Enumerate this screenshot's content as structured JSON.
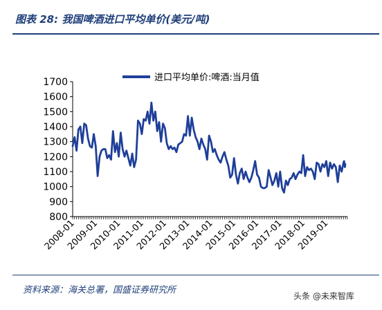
{
  "header": {
    "title": "图表 28: 我国啤酒进口平均单价(美元/吨)"
  },
  "footer": {
    "source": "资料来源：海关总署，国盛证券研究所",
    "watermark": "头条 @未来智库"
  },
  "colors": {
    "series": "#1f3f99",
    "frame": "#1f3f7a"
  },
  "chart_data": {
    "type": "line",
    "legend": {
      "position": "top-center"
    },
    "grid": false,
    "ylim": [
      800,
      1700
    ],
    "yticks": [
      800,
      900,
      1000,
      1100,
      1200,
      1300,
      1400,
      1500,
      1600,
      1700
    ],
    "xticks": [
      "2008-01",
      "2009-01",
      "2010-01",
      "2011-01",
      "2012-01",
      "2013-01",
      "2014-01",
      "2015-01",
      "2016-01",
      "2017-01",
      "2018-01",
      "2019-01"
    ],
    "xlim": [
      "2008-01",
      "2019-12"
    ],
    "series": [
      {
        "name": "进口平均单价:啤酒:当月值",
        "points": [
          [
            "2008-01",
            1270
          ],
          [
            "2008-02",
            1330
          ],
          [
            "2008-03",
            1240
          ],
          [
            "2008-04",
            1380
          ],
          [
            "2008-05",
            1400
          ],
          [
            "2008-06",
            1290
          ],
          [
            "2008-07",
            1420
          ],
          [
            "2008-08",
            1410
          ],
          [
            "2008-09",
            1320
          ],
          [
            "2008-10",
            1270
          ],
          [
            "2008-11",
            1260
          ],
          [
            "2008-12",
            1350
          ],
          [
            "2009-01",
            1270
          ],
          [
            "2009-02",
            1070
          ],
          [
            "2009-03",
            1200
          ],
          [
            "2009-04",
            1240
          ],
          [
            "2009-05",
            1250
          ],
          [
            "2009-06",
            1250
          ],
          [
            "2009-07",
            1190
          ],
          [
            "2009-08",
            1210
          ],
          [
            "2009-09",
            1180
          ],
          [
            "2009-10",
            1370
          ],
          [
            "2009-11",
            1230
          ],
          [
            "2009-12",
            1290
          ],
          [
            "2010-01",
            1200
          ],
          [
            "2010-02",
            1360
          ],
          [
            "2010-03",
            1250
          ],
          [
            "2010-04",
            1200
          ],
          [
            "2010-05",
            1240
          ],
          [
            "2010-06",
            1190
          ],
          [
            "2010-07",
            1140
          ],
          [
            "2010-08",
            1220
          ],
          [
            "2010-09",
            1130
          ],
          [
            "2010-10",
            1180
          ],
          [
            "2010-11",
            1440
          ],
          [
            "2010-12",
            1420
          ],
          [
            "2011-01",
            1350
          ],
          [
            "2011-02",
            1450
          ],
          [
            "2011-03",
            1440
          ],
          [
            "2011-04",
            1500
          ],
          [
            "2011-05",
            1420
          ],
          [
            "2011-06",
            1560
          ],
          [
            "2011-07",
            1440
          ],
          [
            "2011-08",
            1500
          ],
          [
            "2011-09",
            1370
          ],
          [
            "2011-10",
            1430
          ],
          [
            "2011-11",
            1300
          ],
          [
            "2011-12",
            1420
          ],
          [
            "2012-01",
            1390
          ],
          [
            "2012-02",
            1290
          ],
          [
            "2012-03",
            1250
          ],
          [
            "2012-04",
            1270
          ],
          [
            "2012-05",
            1250
          ],
          [
            "2012-06",
            1260
          ],
          [
            "2012-07",
            1230
          ],
          [
            "2012-08",
            1280
          ],
          [
            "2012-09",
            1290
          ],
          [
            "2012-10",
            1300
          ],
          [
            "2012-11",
            1350
          ],
          [
            "2012-12",
            1340
          ],
          [
            "2013-01",
            1470
          ],
          [
            "2013-02",
            1340
          ],
          [
            "2013-03",
            1460
          ],
          [
            "2013-04",
            1380
          ],
          [
            "2013-05",
            1330
          ],
          [
            "2013-06",
            1300
          ],
          [
            "2013-07",
            1250
          ],
          [
            "2013-08",
            1320
          ],
          [
            "2013-09",
            1280
          ],
          [
            "2013-10",
            1250
          ],
          [
            "2013-11",
            1180
          ],
          [
            "2013-12",
            1340
          ],
          [
            "2014-01",
            1300
          ],
          [
            "2014-02",
            1230
          ],
          [
            "2014-03",
            1250
          ],
          [
            "2014-04",
            1210
          ],
          [
            "2014-05",
            1180
          ],
          [
            "2014-06",
            1160
          ],
          [
            "2014-07",
            1200
          ],
          [
            "2014-08",
            1230
          ],
          [
            "2014-09",
            1180
          ],
          [
            "2014-10",
            1140
          ],
          [
            "2014-11",
            1060
          ],
          [
            "2014-12",
            1080
          ],
          [
            "2015-01",
            1190
          ],
          [
            "2015-02",
            1080
          ],
          [
            "2015-03",
            1020
          ],
          [
            "2015-04",
            1090
          ],
          [
            "2015-05",
            1120
          ],
          [
            "2015-06",
            1050
          ],
          [
            "2015-07",
            1100
          ],
          [
            "2015-08",
            1060
          ],
          [
            "2015-09",
            1030
          ],
          [
            "2015-10",
            1060
          ],
          [
            "2015-11",
            1110
          ],
          [
            "2015-12",
            1170
          ],
          [
            "2016-01",
            1080
          ],
          [
            "2016-02",
            1060
          ],
          [
            "2016-03",
            1000
          ],
          [
            "2016-04",
            990
          ],
          [
            "2016-05",
            990
          ],
          [
            "2016-06",
            1000
          ],
          [
            "2016-07",
            1110
          ],
          [
            "2016-08",
            1060
          ],
          [
            "2016-09",
            1010
          ],
          [
            "2016-10",
            1040
          ],
          [
            "2016-11",
            1090
          ],
          [
            "2016-12",
            1000
          ],
          [
            "2017-01",
            1100
          ],
          [
            "2017-02",
            990
          ],
          [
            "2017-03",
            960
          ],
          [
            "2017-04",
            1040
          ],
          [
            "2017-05",
            1010
          ],
          [
            "2017-06",
            1050
          ],
          [
            "2017-07",
            1060
          ],
          [
            "2017-08",
            1090
          ],
          [
            "2017-09",
            1050
          ],
          [
            "2017-10",
            1080
          ],
          [
            "2017-11",
            1100
          ],
          [
            "2017-12",
            1090
          ],
          [
            "2018-01",
            1210
          ],
          [
            "2018-02",
            1070
          ],
          [
            "2018-03",
            1130
          ],
          [
            "2018-04",
            1110
          ],
          [
            "2018-05",
            1120
          ],
          [
            "2018-06",
            1100
          ],
          [
            "2018-07",
            1050
          ],
          [
            "2018-08",
            1160
          ],
          [
            "2018-09",
            1150
          ],
          [
            "2018-10",
            1100
          ],
          [
            "2018-11",
            1150
          ],
          [
            "2018-12",
            1130
          ],
          [
            "2019-01",
            1170
          ],
          [
            "2019-02",
            1070
          ],
          [
            "2019-03",
            1160
          ],
          [
            "2019-04",
            1120
          ],
          [
            "2019-05",
            1150
          ],
          [
            "2019-06",
            1130
          ],
          [
            "2019-07",
            1030
          ],
          [
            "2019-08",
            1140
          ],
          [
            "2019-09",
            1100
          ],
          [
            "2019-10",
            1160
          ],
          [
            "2019-11",
            1170
          ],
          [
            "2019-12",
            1150
          ],
          [
            "2020-01",
            1130
          ],
          [
            "2020-02",
            1150
          ]
        ]
      }
    ]
  }
}
